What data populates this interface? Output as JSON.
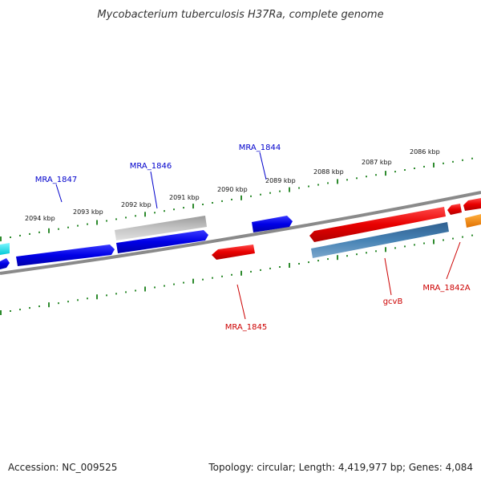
{
  "title": "Mycobacterium tuberculosis H37Ra, complete genome",
  "footer": {
    "accession": "Accession: NC_009525",
    "summary": "Topology: circular; Length: 4,419,977 bp; Genes: 4,084"
  },
  "scale": {
    "tick_labels": [
      "2094 kbp",
      "2093 kbp",
      "2092 kbp",
      "2091 kbp",
      "2090 kbp",
      "2089 kbp",
      "2088 kbp",
      "2087 kbp",
      "2086 kbp"
    ],
    "tick_color": "#2e8b2e"
  },
  "genes": {
    "forward_labels": [
      "MRA_1847",
      "MRA_1846",
      "MRA_1844"
    ],
    "reverse_labels": [
      "MRA_1845",
      "gcvB",
      "MRA_1842A"
    ],
    "forward_label_color": "#0000cc",
    "reverse_label_color": "#cc0000"
  },
  "colors": {
    "backbone": "#808080",
    "forward_gene": "#0000ee",
    "reverse_gene": "#ee0000",
    "pseudo_gene": "#b0b0b0",
    "rna_gene": "#4682b4",
    "partial_cyan": "#00e5ee",
    "partial_orange": "#ff8c00"
  }
}
